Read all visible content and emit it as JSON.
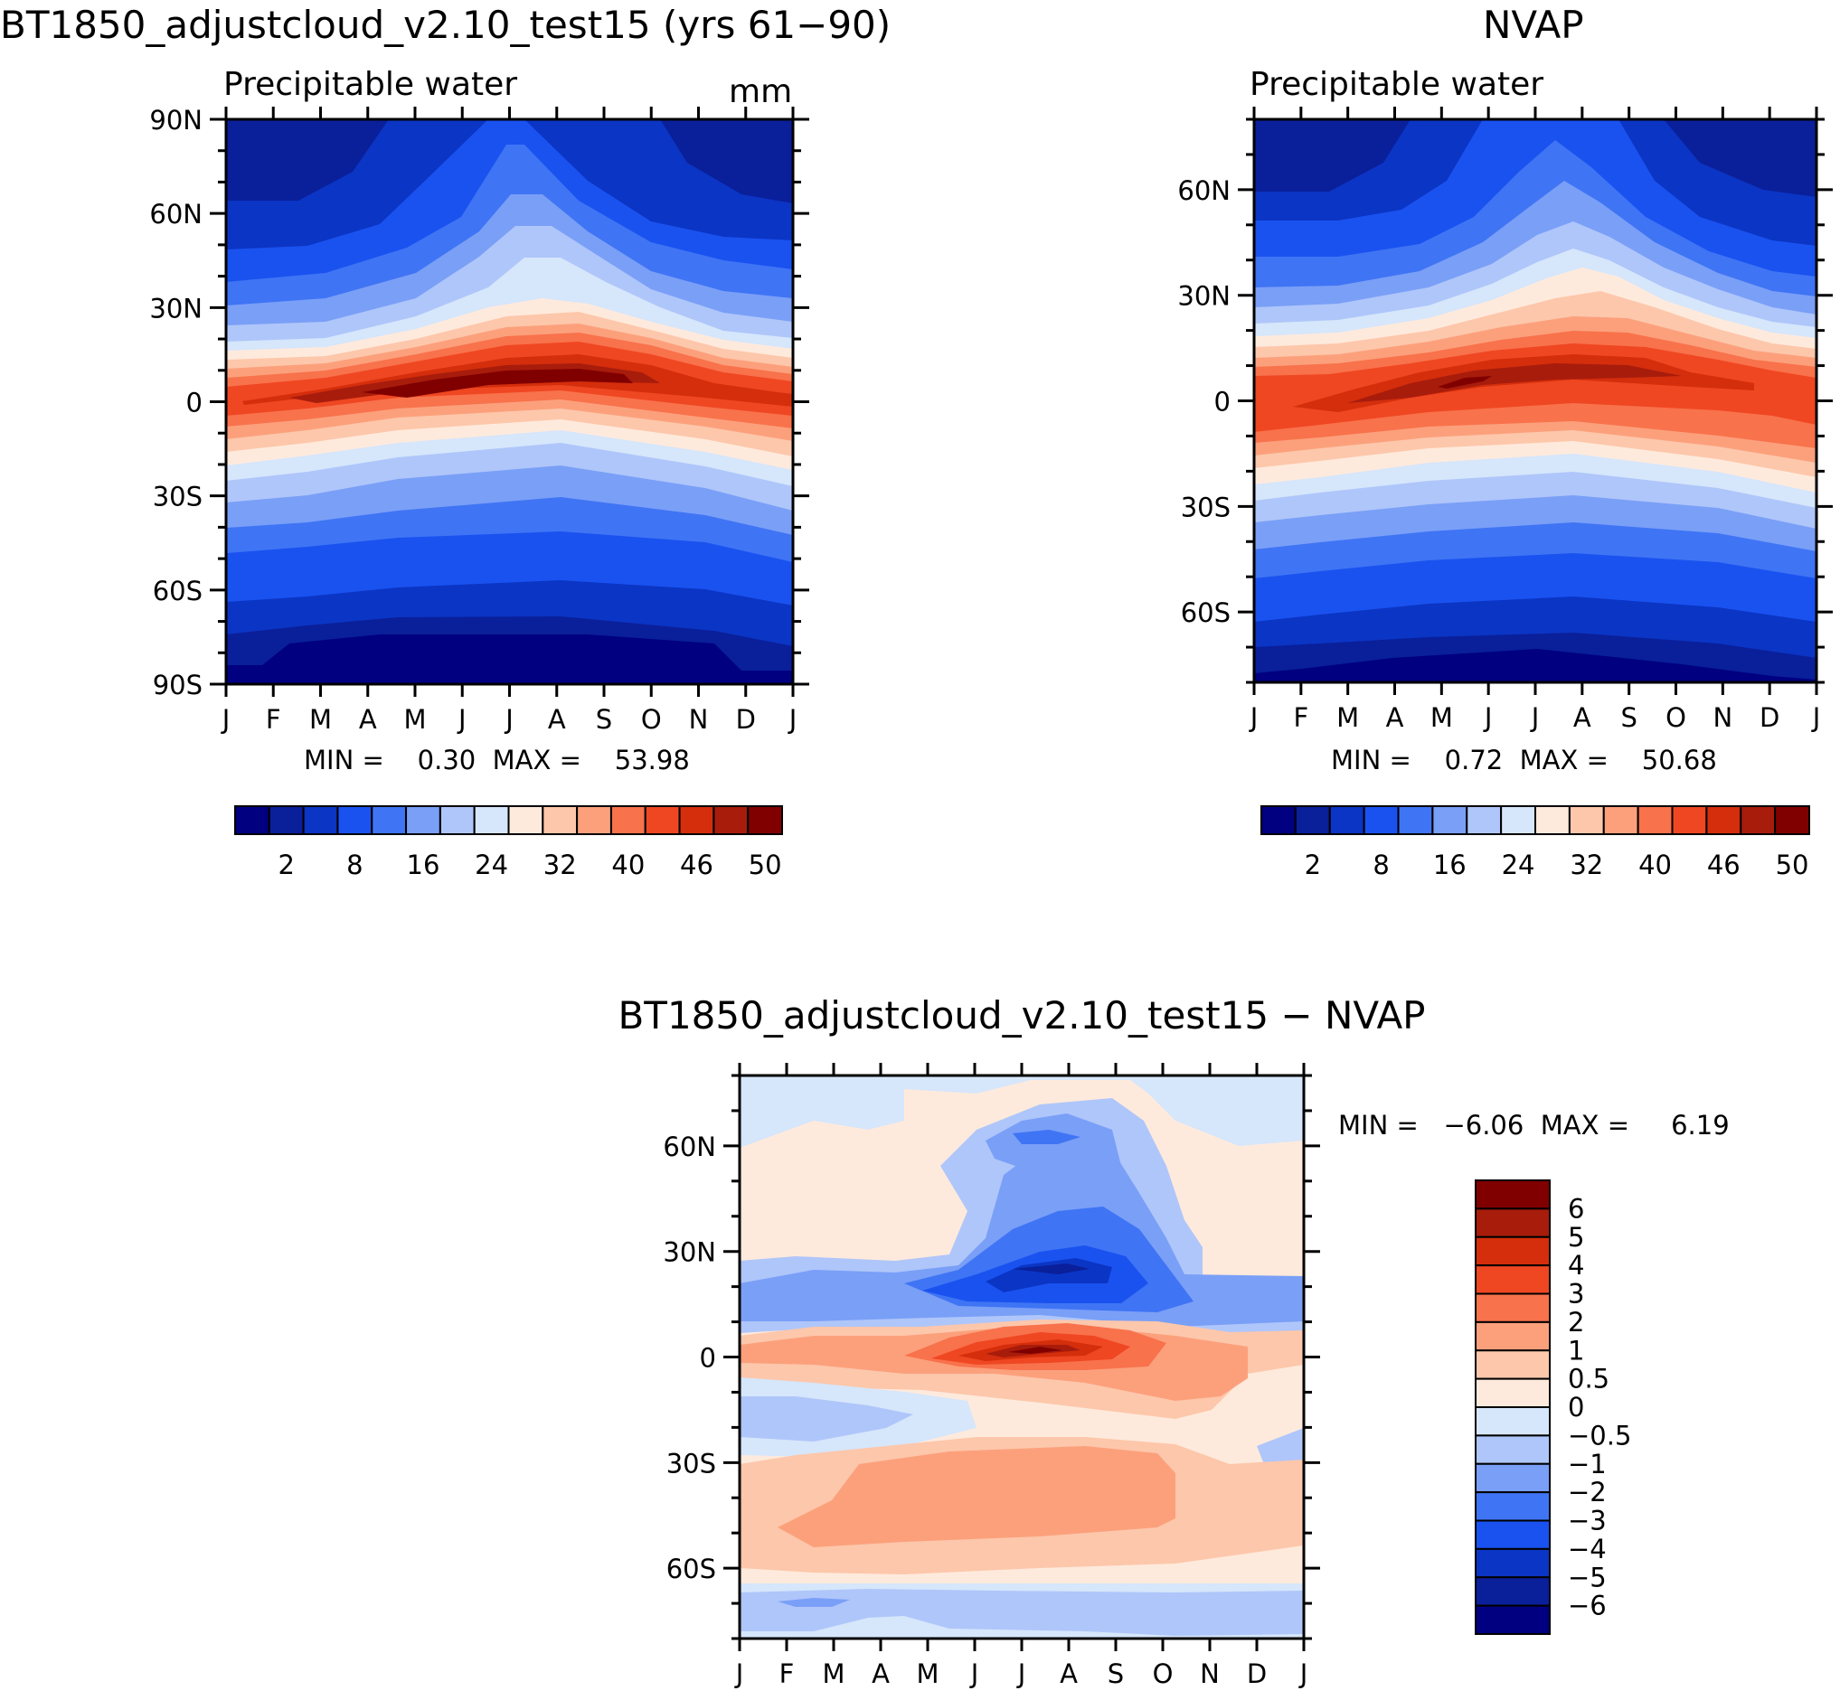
{
  "colors": {
    "pw_scale": [
      "#000080",
      "#0a1f9a",
      "#0b35c4",
      "#1a52f0",
      "#3f74f4",
      "#7a9ff7",
      "#afc6fa",
      "#d6e6fb",
      "#feeadc",
      "#fdc7ab",
      "#fca07c",
      "#f8724c",
      "#ef4722",
      "#d42e0c",
      "#a81c0c",
      "#800000"
    ],
    "diff_scale": [
      "#000080",
      "#0a1f9a",
      "#0b35c4",
      "#1a52f0",
      "#3f74f4",
      "#7a9ff7",
      "#afc6fa",
      "#d6e6fb",
      "#feeadc",
      "#fdc7ab",
      "#fca07c",
      "#f8724c",
      "#ef4722",
      "#d42e0c",
      "#a81c0c",
      "#800000"
    ]
  },
  "chart_data": [
    {
      "type": "heatmap",
      "title": "BT1850_adjustcloud_v2.10_test15 (yrs 61−90)",
      "subtitle": "Precipitable water",
      "units": "mm",
      "x_ticks": [
        "J",
        "F",
        "M",
        "A",
        "M",
        "J",
        "J",
        "A",
        "S",
        "O",
        "N",
        "D",
        "J"
      ],
      "y_ticks": [
        "90N",
        "60N",
        "30N",
        "0",
        "30S",
        "60S",
        "90S"
      ],
      "y_range": [
        -90,
        90
      ],
      "stats": "MIN =    0.30  MAX =    53.98",
      "min": 0.3,
      "max": 53.98,
      "colorbar_labels": [
        "2",
        "8",
        "16",
        "24",
        "32",
        "40",
        "46",
        "50"
      ],
      "colorbar_levels": [
        2,
        4,
        8,
        12,
        16,
        20,
        24,
        28,
        32,
        36,
        40,
        44,
        46,
        48,
        50
      ]
    },
    {
      "type": "heatmap",
      "title": "NVAP",
      "subtitle": "Precipitable water",
      "x_ticks": [
        "J",
        "F",
        "M",
        "A",
        "M",
        "J",
        "J",
        "A",
        "S",
        "O",
        "N",
        "D",
        "J"
      ],
      "y_ticks": [
        "60N",
        "30N",
        "0",
        "30S",
        "60S"
      ],
      "y_range": [
        -80,
        80
      ],
      "stats": "MIN =    0.72  MAX =    50.68",
      "min": 0.72,
      "max": 50.68,
      "colorbar_labels": [
        "2",
        "8",
        "16",
        "24",
        "32",
        "40",
        "46",
        "50"
      ],
      "colorbar_levels": [
        2,
        4,
        8,
        12,
        16,
        20,
        24,
        28,
        32,
        36,
        40,
        44,
        46,
        48,
        50
      ]
    },
    {
      "type": "heatmap",
      "title": "BT1850_adjustcloud_v2.10_test15 − NVAP",
      "x_ticks": [
        "J",
        "F",
        "M",
        "A",
        "M",
        "J",
        "J",
        "A",
        "S",
        "O",
        "N",
        "D",
        "J"
      ],
      "y_ticks": [
        "60N",
        "30N",
        "0",
        "30S",
        "60S"
      ],
      "y_range": [
        -80,
        80
      ],
      "stats": "MIN =   −6.06  MAX =     6.19",
      "min": -6.06,
      "max": 6.19,
      "colorbar_labels": [
        "6",
        "5",
        "4",
        "3",
        "2",
        "1",
        "0.5",
        "0",
        "−0.5",
        "−1",
        "−2",
        "−3",
        "−4",
        "−5",
        "−6"
      ],
      "colorbar_levels": [
        6,
        5,
        4,
        3,
        2,
        1,
        0.5,
        0,
        -0.5,
        -1,
        -2,
        -3,
        -4,
        -5,
        -6
      ]
    }
  ]
}
